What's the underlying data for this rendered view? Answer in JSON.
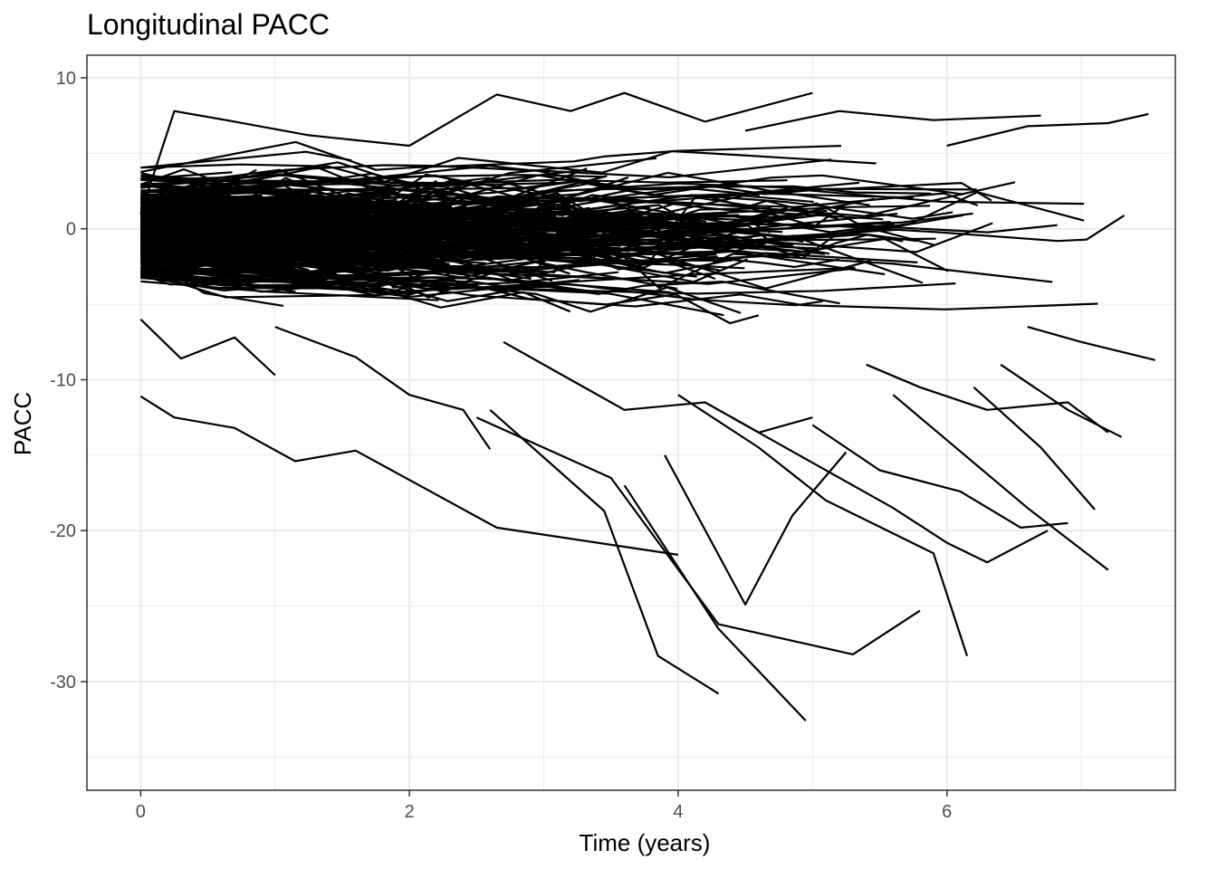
{
  "chart_data": {
    "type": "line",
    "title": "Longitudinal PACC",
    "xlabel": "Time (years)",
    "ylabel": "PACC",
    "xlim": [
      -0.4,
      7.7
    ],
    "ylim": [
      -37.2,
      11.5
    ],
    "x_ticks": [
      0,
      2,
      4,
      6
    ],
    "x_tick_labels": [
      "0",
      "2",
      "4",
      "6"
    ],
    "y_ticks": [
      10,
      0,
      -10,
      -20,
      -30
    ],
    "y_tick_labels": [
      "10",
      "0",
      "-10",
      "-20",
      "-30"
    ],
    "x_minor_ticks": [
      1,
      3,
      5,
      7
    ],
    "y_minor_ticks": [
      5,
      -5,
      -15,
      -25,
      -35
    ],
    "grid": true,
    "legend": "none",
    "line_color": "#000000",
    "dense_band": {
      "description_note": "Hundreds of overlapping individual trajectories between roughly -7 and +6 PACC across 0 to 7.5 years",
      "n_lines": 420
    },
    "series": [
      {
        "x": [
          0.0,
          0.25,
          0.7,
          1.15,
          1.6,
          2.65,
          4.0
        ],
        "y": [
          -11.1,
          -12.5,
          -13.2,
          -15.4,
          -14.7,
          -19.8,
          -21.6
        ]
      },
      {
        "x": [
          2.5,
          3.5,
          4.3,
          5.3,
          5.8
        ],
        "y": [
          -12.5,
          -16.5,
          -26.2,
          -28.2,
          -25.3
        ]
      },
      {
        "x": [
          2.6,
          3.45,
          3.85,
          4.3
        ],
        "y": [
          -12.0,
          -18.7,
          -28.3,
          -30.8
        ]
      },
      {
        "x": [
          3.6,
          4.3,
          4.95
        ],
        "y": [
          -17.0,
          -26.5,
          -32.6
        ]
      },
      {
        "x": [
          3.9,
          4.5,
          4.85,
          5.25
        ],
        "y": [
          -15.0,
          -24.9,
          -19.0,
          -14.8
        ]
      },
      {
        "x": [
          4.0,
          4.6,
          5.1,
          5.9,
          6.15
        ],
        "y": [
          -11.0,
          -14.5,
          -18.0,
          -21.5,
          -28.3
        ]
      },
      {
        "x": [
          4.4,
          5.0,
          5.6,
          6.0,
          6.3,
          6.75
        ],
        "y": [
          -12.5,
          -15.5,
          -18.5,
          -20.8,
          -22.1,
          -20.0
        ]
      },
      {
        "x": [
          5.0,
          5.5,
          6.1,
          6.55,
          6.9
        ],
        "y": [
          -13.0,
          -16.0,
          -17.4,
          -19.8,
          -19.5
        ]
      },
      {
        "x": [
          5.6,
          6.0,
          6.6,
          7.2
        ],
        "y": [
          -11.0,
          -14.0,
          -18.5,
          -22.6
        ]
      },
      {
        "x": [
          6.2,
          6.7,
          7.1
        ],
        "y": [
          -10.5,
          -14.5,
          -18.6
        ]
      },
      {
        "x": [
          6.4,
          6.9,
          7.3
        ],
        "y": [
          -9.0,
          -12.0,
          -13.8
        ]
      },
      {
        "x": [
          0.0,
          0.25,
          0.7,
          1.25,
          2.0
        ],
        "y": [
          1.0,
          7.8,
          7.1,
          6.2,
          5.5
        ]
      },
      {
        "x": [
          2.0,
          2.65,
          3.2,
          3.6,
          4.2,
          5.0
        ],
        "y": [
          5.5,
          8.9,
          7.8,
          9.0,
          7.1,
          9.0
        ]
      },
      {
        "x": [
          4.5,
          5.2,
          5.9,
          6.7
        ],
        "y": [
          6.5,
          7.8,
          7.2,
          7.5
        ]
      },
      {
        "x": [
          6.0,
          6.6,
          7.2,
          7.5
        ],
        "y": [
          5.5,
          6.8,
          7.0,
          7.6
        ]
      },
      {
        "x": [
          0.0,
          0.3,
          0.7,
          1.0
        ],
        "y": [
          -6.0,
          -8.6,
          -7.2,
          -9.7
        ]
      },
      {
        "x": [
          1.0,
          1.6,
          2.0,
          2.4,
          2.6
        ],
        "y": [
          -6.5,
          -8.5,
          -11.0,
          -12.0,
          -14.6
        ]
      },
      {
        "x": [
          2.7,
          3.2,
          3.6,
          4.2,
          4.6,
          5.0
        ],
        "y": [
          -7.5,
          -10.0,
          -12.0,
          -11.5,
          -13.5,
          -12.5
        ]
      },
      {
        "x": [
          5.4,
          5.8,
          6.3,
          6.9,
          7.2
        ],
        "y": [
          -9.0,
          -10.5,
          -12.0,
          -11.5,
          -13.5
        ]
      },
      {
        "x": [
          6.6,
          7.0,
          7.55
        ],
        "y": [
          -6.5,
          -7.5,
          -8.7
        ]
      }
    ]
  }
}
